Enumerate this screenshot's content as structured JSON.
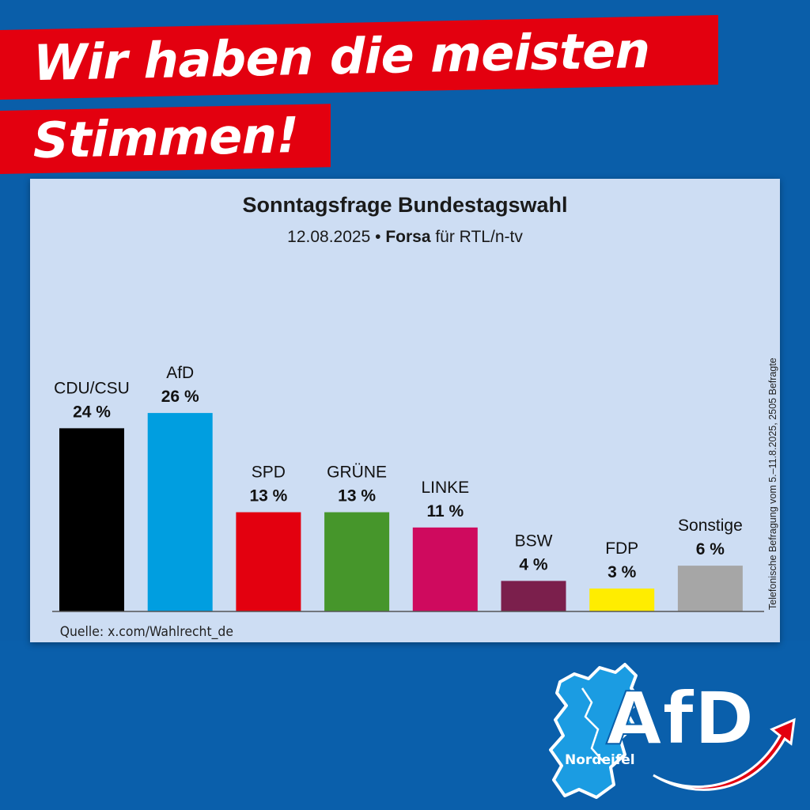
{
  "headline": {
    "line1": "Wir haben die meisten",
    "line2": "Stimmen!"
  },
  "chart_data": {
    "type": "bar",
    "title": "Sonntagsfrage Bundestagswahl",
    "subtitle_date": "12.08.2025 •",
    "subtitle_institute": "Forsa",
    "subtitle_client": "für RTL/n-tv",
    "categories": [
      "CDU/CSU",
      "AfD",
      "SPD",
      "GRÜNE",
      "LINKE",
      "BSW",
      "FDP",
      "Sonstige"
    ],
    "values": [
      24,
      26,
      13,
      13,
      11,
      4,
      3,
      6
    ],
    "value_labels": [
      "24 %",
      "26 %",
      "13 %",
      "13 %",
      "11 %",
      "4 %",
      "3 %",
      "6 %"
    ],
    "colors": [
      "#000000",
      "#009ee0",
      "#e3000f",
      "#46962b",
      "#cf0a5e",
      "#7b1f4c",
      "#ffed00",
      "#a6a6a6"
    ],
    "source": "Quelle: x.com/Wahlrecht_de",
    "side_note": "Telefonische Befragung vom 5.–11.8.2025, 2505 Befragte",
    "ylim": [
      0,
      30
    ],
    "grid": false
  },
  "logo": {
    "wordmark": "AfD",
    "region": "Nordeifel",
    "colors": {
      "map": "#1b9ce2",
      "arrow": "#e3000f",
      "text": "#ffffff"
    }
  }
}
